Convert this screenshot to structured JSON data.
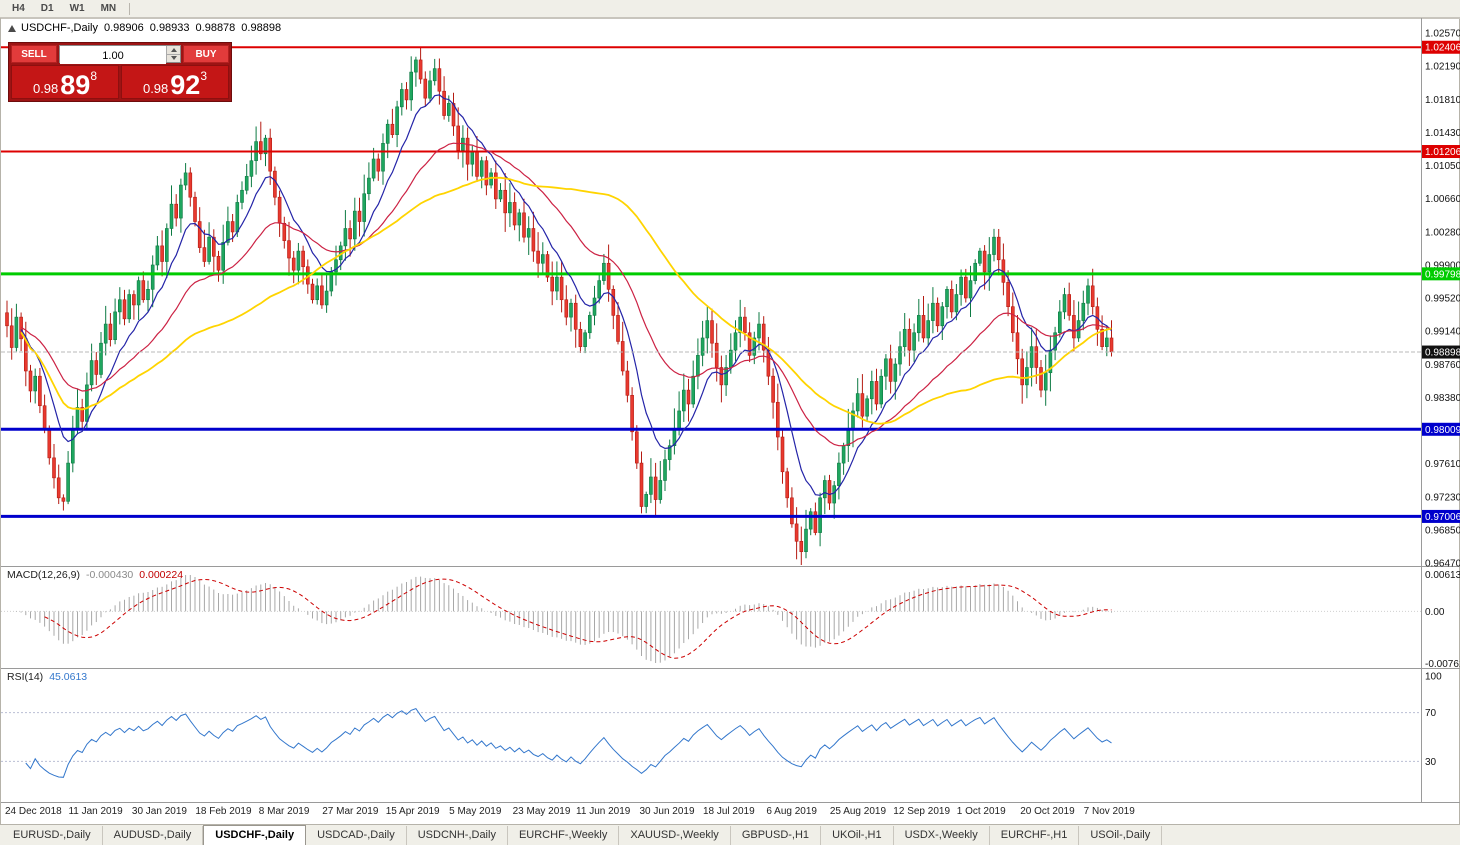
{
  "toolbar": {
    "timeframes": [
      "H4",
      "D1",
      "W1",
      "MN"
    ]
  },
  "chart_header": {
    "symbol": "USDCHF-,Daily",
    "open": "0.98906",
    "high": "0.98933",
    "low": "0.98878",
    "close": "0.98898"
  },
  "trade_panel": {
    "sell_label": "SELL",
    "buy_label": "BUY",
    "volume": "1.00",
    "sell_price": {
      "base": "0.98",
      "big": "89",
      "sup": "8"
    },
    "buy_price": {
      "base": "0.98",
      "big": "92",
      "sup": "3"
    }
  },
  "chart_data": {
    "type": "candlestick",
    "symbol": "USDCHF",
    "timeframe": "Daily",
    "x_labels": [
      "24 Dec 2018",
      "11 Jan 2019",
      "30 Jan 2019",
      "18 Feb 2019",
      "8 Mar 2019",
      "27 Mar 2019",
      "15 Apr 2019",
      "5 May 2019",
      "23 May 2019",
      "11 Jun 2019",
      "30 Jun 2019",
      "18 Jul 2019",
      "6 Aug 2019",
      "25 Aug 2019",
      "12 Sep 2019",
      "1 Oct 2019",
      "20 Oct 2019",
      "7 Nov 2019"
    ],
    "y_ticks": [
      "1.02570",
      "1.02190",
      "1.01810",
      "1.01430",
      "1.01050",
      "1.00660",
      "1.00280",
      "0.99900",
      "0.99520",
      "0.99140",
      "0.98760",
      "0.98380",
      "0.98000",
      "0.97610",
      "0.97230",
      "0.96850",
      "0.96470"
    ],
    "y_range": [
      0.9647,
      1.0257
    ],
    "open_first": 0.9935,
    "closes": [
      0.992,
      0.9895,
      0.993,
      0.9905,
      0.9868,
      0.9845,
      0.9862,
      0.9828,
      0.98,
      0.9768,
      0.9745,
      0.9722,
      0.9718,
      0.9762,
      0.98,
      0.9826,
      0.981,
      0.9852,
      0.988,
      0.9864,
      0.99,
      0.9922,
      0.9904,
      0.9936,
      0.995,
      0.9928,
      0.9956,
      0.9944,
      0.9972,
      0.995,
      0.9962,
      0.999,
      1.0012,
      0.9994,
      1.0032,
      1.006,
      1.0044,
      1.0082,
      1.0096,
      1.0068,
      1.004,
      1.001,
      0.9994,
      1.0022,
      1.0,
      0.9984,
      1.0016,
      1.004,
      1.0028,
      1.0062,
      1.0076,
      1.0092,
      1.011,
      1.0132,
      1.0118,
      1.0136,
      1.0098,
      1.0068,
      1.0038,
      1.0018,
      0.9998,
      0.9984,
      1.0006,
      0.9988,
      0.9968,
      0.995,
      0.9966,
      0.9944,
      0.996,
      0.9982,
      0.9996,
      1.0012,
      1.0032,
      1.002,
      1.0052,
      1.004,
      1.0072,
      1.009,
      1.0112,
      1.0098,
      1.013,
      1.0152,
      1.014,
      1.0172,
      1.0192,
      1.018,
      1.0212,
      1.0226,
      1.0204,
      1.0182,
      1.0202,
      1.0216,
      1.019,
      1.0162,
      1.0176,
      1.015,
      1.0122,
      1.0136,
      1.0106,
      1.012,
      1.0092,
      1.011,
      1.0082,
      1.0096,
      1.0066,
      1.0076,
      1.005,
      1.0062,
      1.0036,
      1.005,
      1.0022,
      1.0032,
      1.0006,
      0.9992,
      1.0002,
      0.9976,
      0.996,
      0.9976,
      0.995,
      0.993,
      0.9946,
      0.9916,
      0.9896,
      0.9912,
      0.9932,
      0.9952,
      0.9972,
      0.9992,
      0.9962,
      0.9932,
      0.9902,
      0.9868,
      0.984,
      0.9798,
      0.9762,
      0.9712,
      0.9726,
      0.9746,
      0.972,
      0.9742,
      0.9766,
      0.9782,
      0.9802,
      0.9822,
      0.9846,
      0.983,
      0.9862,
      0.9886,
      0.9906,
      0.9926,
      0.99,
      0.9872,
      0.9852,
      0.9872,
      0.9892,
      0.9912,
      0.993,
      0.9912,
      0.9886,
      0.9906,
      0.9922,
      0.9892,
      0.9862,
      0.9832,
      0.9792,
      0.9752,
      0.9722,
      0.9692,
      0.9672,
      0.966,
      0.9686,
      0.9706,
      0.9682,
      0.9722,
      0.9742,
      0.9716,
      0.9736,
      0.9762,
      0.9782,
      0.9802,
      0.9822,
      0.9842,
      0.9816,
      0.9836,
      0.9856,
      0.983,
      0.9862,
      0.9882,
      0.9856,
      0.9876,
      0.9896,
      0.9916,
      0.9892,
      0.9912,
      0.9932,
      0.9906,
      0.9926,
      0.9946,
      0.992,
      0.9942,
      0.9962,
      0.9936,
      0.9956,
      0.9976,
      0.9952,
      0.9972,
      0.9992,
      1.0006,
      0.9982,
      1.0002,
      1.0022,
      0.9996,
      0.997,
      0.9942,
      0.9912,
      0.9882,
      0.9852,
      0.9872,
      0.9896,
      0.9872,
      0.9846,
      0.9866,
      0.9892,
      0.9912,
      0.9936,
      0.9956,
      0.9932,
      0.9906,
      0.9926,
      0.9946,
      0.9966,
      0.9942,
      0.9916,
      0.9896,
      0.9906,
      0.989
    ],
    "price_lines": [
      {
        "value": 1.02406,
        "label": "1.02406",
        "color": "#dd0000",
        "width": 2
      },
      {
        "value": 1.01206,
        "label": "1.01206",
        "color": "#dd0000",
        "width": 2
      },
      {
        "value": 0.99798,
        "label": "0.99798",
        "color": "#00cc00",
        "width": 3
      },
      {
        "value": 0.98009,
        "label": "0.98009",
        "color": "#0000cc",
        "width": 3
      },
      {
        "value": 0.97006,
        "label": "0.97006",
        "color": "#0000cc",
        "width": 3
      }
    ],
    "current_price": {
      "value": 0.98898,
      "label": "0.98898"
    },
    "ma_lines": [
      {
        "name": "ma-fast-line",
        "period": 10,
        "type": "ema",
        "color": "#2424a8",
        "width": 1.2
      },
      {
        "name": "ma-mid-line",
        "period": 30,
        "type": "ema",
        "color": "#cc2244",
        "width": 1.2
      },
      {
        "name": "ma-slow-line",
        "period": 55,
        "type": "sma",
        "color": "#ffd400",
        "width": 1.8
      }
    ],
    "colors": {
      "up": "#1fa65f",
      "up_border": "#0d7a43",
      "down": "#e8392f",
      "down_border": "#b51b12"
    }
  },
  "macd_panel": {
    "title": "MACD(12,26,9)",
    "value_main": "-0.000430",
    "value_signal": "0.000224",
    "y_ticks": [
      "0.00613",
      "0.00",
      "-0.00761"
    ],
    "params": {
      "fast": 12,
      "slow": 26,
      "signal": 9
    },
    "colors": {
      "histogram": "#a8a8a8",
      "signal": "#cc0000"
    }
  },
  "rsi_panel": {
    "title": "RSI(14)",
    "value": "45.0613",
    "y_ticks": [
      "100",
      "70",
      "30"
    ],
    "levels": [
      70,
      30
    ],
    "period": 14,
    "color": "#3377cc"
  },
  "bottom_tabs": {
    "active_index": 2,
    "tabs": [
      "EURUSD-,Daily",
      "AUDUSD-,Daily",
      "USDCHF-,Daily",
      "USDCAD-,Daily",
      "USDCNH-,Daily",
      "EURCHF-,Weekly",
      "XAUUSD-,Weekly",
      "GBPUSD-,H1",
      "UKOil-,H1",
      "USDX-,Weekly",
      "EURCHF-,H1",
      "USOil-,Daily"
    ]
  }
}
